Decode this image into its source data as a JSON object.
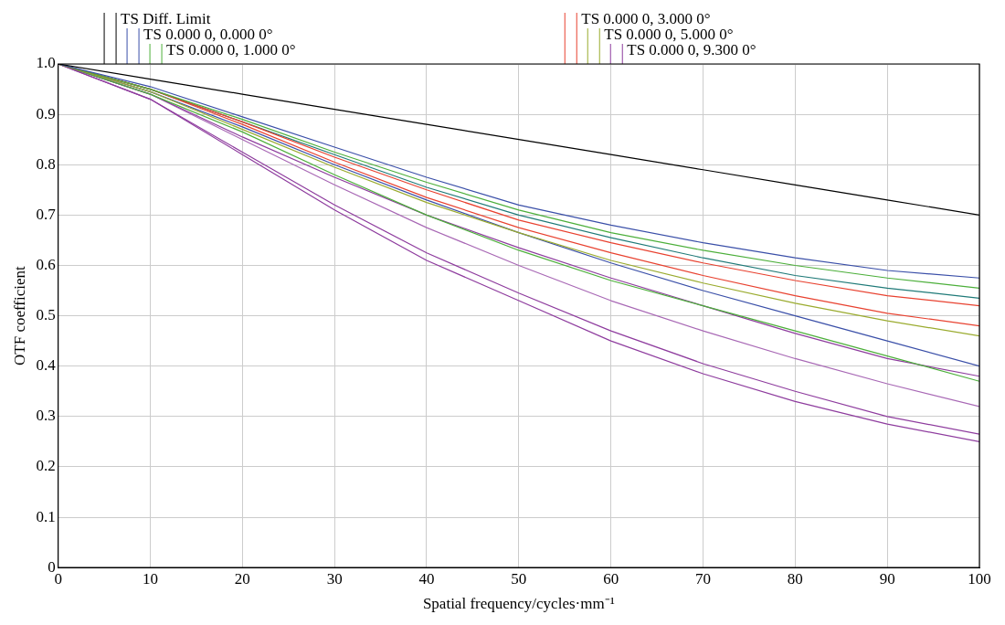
{
  "chart_data": {
    "type": "line",
    "xlabel": "Spatial frequency/cycles·mm⁻¹",
    "ylabel": "OTF coefficient",
    "x": [
      0,
      10,
      20,
      30,
      40,
      50,
      60,
      70,
      80,
      90,
      100
    ],
    "xlim": [
      0,
      100
    ],
    "xticks": [
      0,
      10,
      20,
      30,
      40,
      50,
      60,
      70,
      80,
      90,
      100
    ],
    "ylim": [
      0,
      1
    ],
    "yticks": [
      0,
      0.1,
      0.2,
      0.3,
      0.4,
      0.5,
      0.6,
      0.7,
      0.8,
      0.9,
      {
        "value": 1,
        "label": "1.0"
      }
    ],
    "grid": true,
    "legend": "top",
    "marker": "none",
    "line_style": "solid",
    "series": [
      {
        "name": "TS Diff. Limit",
        "color": "#000000",
        "values": [
          1,
          0.97,
          0.94,
          0.91,
          0.88,
          0.85,
          0.82,
          0.79,
          0.76,
          0.73,
          0.7
        ]
      },
      {
        "name": "TS 0.000 0, 0.000 0°",
        "color": "#3a4fa8",
        "values": [
          1,
          0.955,
          0.895,
          0.835,
          0.775,
          0.72,
          0.68,
          0.645,
          0.615,
          0.59,
          0.575
        ]
      },
      {
        "name": "TS 0.000 0, 1.000 0°",
        "color": "#4caf3a",
        "values": [
          1,
          0.95,
          0.89,
          0.825,
          0.765,
          0.71,
          0.665,
          0.63,
          0.6,
          0.575,
          0.555
        ]
      },
      {
        "name": "TS 0.000 0, 3.000 0°",
        "color": "#e8412f",
        "values": [
          1,
          0.95,
          0.885,
          0.815,
          0.75,
          0.69,
          0.645,
          0.605,
          0.57,
          0.54,
          0.52
        ]
      },
      {
        "name": "TS 0.000 0, 5.000 0°",
        "color": "#9aab2e",
        "values": [
          1,
          0.945,
          0.87,
          0.795,
          0.725,
          0.665,
          0.61,
          0.565,
          0.525,
          0.49,
          0.46
        ]
      },
      {
        "name": "TS 0.000 0, 9.300 0°",
        "color": "#8e3c9e",
        "values": [
          1,
          0.93,
          0.82,
          0.71,
          0.61,
          0.53,
          0.45,
          0.385,
          0.33,
          0.285,
          0.25
        ]
      },
      {
        "color": "#1f7a78",
        "values": [
          1,
          0.95,
          0.885,
          0.82,
          0.755,
          0.7,
          0.655,
          0.615,
          0.58,
          0.555,
          0.535
        ]
      },
      {
        "color": "#e8412f",
        "values": [
          1,
          0.95,
          0.88,
          0.805,
          0.735,
          0.675,
          0.625,
          0.58,
          0.54,
          0.505,
          0.48
        ]
      },
      {
        "color": "#3a4fa8",
        "values": [
          1,
          0.945,
          0.875,
          0.8,
          0.73,
          0.665,
          0.605,
          0.55,
          0.5,
          0.45,
          0.4
        ]
      },
      {
        "color": "#4caf3a",
        "values": [
          1,
          0.94,
          0.865,
          0.78,
          0.7,
          0.63,
          0.57,
          0.52,
          0.47,
          0.42,
          0.37
        ]
      },
      {
        "color": "#8e3c9e",
        "values": [
          1,
          0.94,
          0.855,
          0.775,
          0.7,
          0.635,
          0.575,
          0.52,
          0.465,
          0.415,
          0.38
        ]
      },
      {
        "color": "#a868b5",
        "values": [
          1,
          0.94,
          0.85,
          0.76,
          0.675,
          0.6,
          0.53,
          0.47,
          0.415,
          0.365,
          0.32
        ]
      },
      {
        "color": "#8e3c9e",
        "values": [
          1,
          0.93,
          0.825,
          0.72,
          0.625,
          0.545,
          0.47,
          0.405,
          0.35,
          0.3,
          0.265
        ]
      }
    ]
  }
}
